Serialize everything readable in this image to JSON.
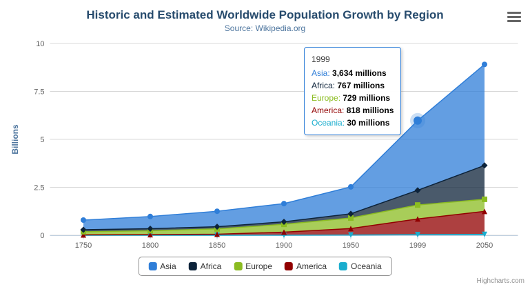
{
  "chart_data": {
    "type": "area",
    "stacking": "normal",
    "title": "Historic and Estimated Worldwide Population Growth by Region",
    "subtitle": "Source: Wikipedia.org",
    "xlabel": "",
    "ylabel": "Billions",
    "categories": [
      "1750",
      "1800",
      "1850",
      "1900",
      "1950",
      "1999",
      "2050"
    ],
    "ylim": [
      0,
      10
    ],
    "yticks": [
      "0",
      "2.5",
      "5",
      "7.5",
      "10"
    ],
    "ytick_values": [
      0,
      2.5,
      5,
      7.5,
      10
    ],
    "values_unit": "millions",
    "grid": "horizontal",
    "legend_position": "bottom",
    "series": [
      {
        "name": "Asia",
        "color": "#2f7ed8",
        "marker": "circle",
        "values": [
          502,
          635,
          809,
          947,
          1402,
          3634,
          5268
        ]
      },
      {
        "name": "Africa",
        "color": "#0d233a",
        "marker": "diamond",
        "values": [
          106,
          107,
          111,
          133,
          221,
          767,
          1766
        ]
      },
      {
        "name": "Europe",
        "color": "#8bbc21",
        "marker": "square",
        "values": [
          163,
          203,
          276,
          408,
          547,
          729,
          628
        ]
      },
      {
        "name": "America",
        "color": "#910000",
        "marker": "triangle",
        "values": [
          18,
          31,
          54,
          156,
          339,
          818,
          1201
        ]
      },
      {
        "name": "Oceania",
        "color": "#1aadce",
        "marker": "triangle-down",
        "values": [
          2,
          2,
          2,
          6,
          13,
          30,
          46
        ]
      }
    ],
    "hover": {
      "category": "1999",
      "series": "Asia"
    }
  },
  "tooltip": {
    "header": "1999",
    "border_color": "#2f7ed8",
    "rows": [
      {
        "name": "Asia",
        "color": "#2f7ed8",
        "value": "3,634 millions"
      },
      {
        "name": "Africa",
        "color": "#0d233a",
        "value": "767 millions"
      },
      {
        "name": "Europe",
        "color": "#8bbc21",
        "value": "729 millions"
      },
      {
        "name": "America",
        "color": "#910000",
        "value": "818 millions"
      },
      {
        "name": "Oceania",
        "color": "#1aadce",
        "value": "30 millions"
      }
    ]
  },
  "legend": {
    "items": [
      {
        "label": "Asia",
        "color": "#2f7ed8"
      },
      {
        "label": "Africa",
        "color": "#0d233a"
      },
      {
        "label": "Europe",
        "color": "#8bbc21"
      },
      {
        "label": "America",
        "color": "#910000"
      },
      {
        "label": "Oceania",
        "color": "#1aadce"
      }
    ]
  },
  "credits": {
    "label": "Highcharts.com"
  }
}
